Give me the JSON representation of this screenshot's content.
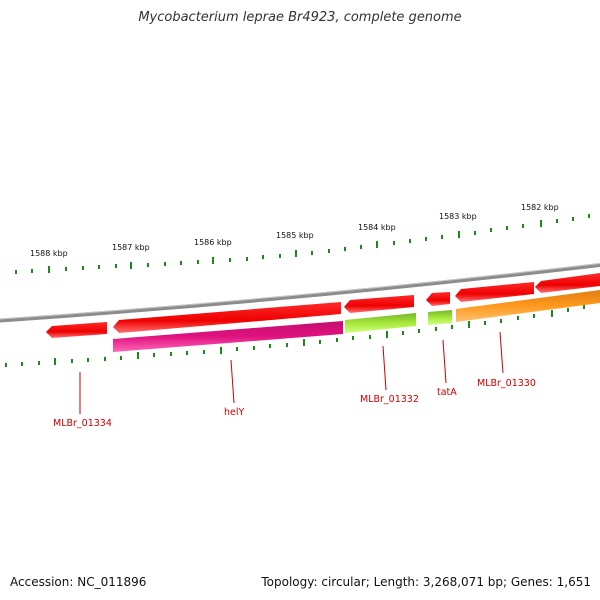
{
  "title": "Mycobacterium leprae Br4923, complete genome",
  "footer": {
    "accession": "Accession: NC_011896",
    "summary": "Topology: circular; Length: 3,268,071 bp; Genes: 1,651"
  },
  "ruler_labels": [
    "1588 kbp",
    "1587 kbp",
    "1586 kbp",
    "1585 kbp",
    "1584 kbp",
    "1583 kbp",
    "1582 kbp"
  ],
  "gene_labels": [
    "MLBr_01334",
    "helY",
    "MLBr_01332",
    "tatA",
    "MLBr_01330"
  ],
  "colors": {
    "backbone": "#8c8c8c",
    "cds_arrow": "#ee0000",
    "tick": "#1a8a1a",
    "label": "#cc0000",
    "helY": "#e0127f",
    "MLBr_01332": "#a6e83a",
    "tatA": "#a6e83a",
    "MLBr_01330": "#ff9a1e"
  }
}
